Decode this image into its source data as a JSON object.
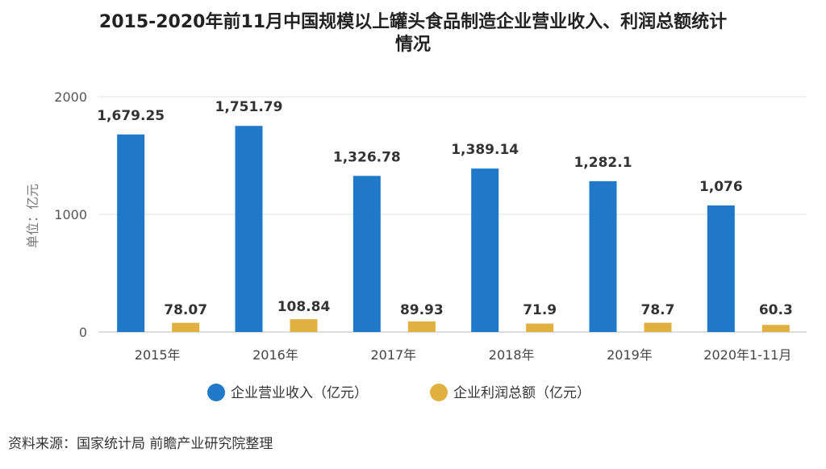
{
  "chart_data": {
    "type": "bar",
    "title_line1": "2015-2020年前11月中国规模以上罐头食品制造企业营业收入、利润总额统计",
    "title_line2": "情况",
    "ylabel": "单位：亿元",
    "ylim": [
      0,
      2000
    ],
    "yticks": [
      "0",
      "1000",
      "2000"
    ],
    "categories": [
      "2015年",
      "2016年",
      "2017年",
      "2018年",
      "2019年",
      "2020年1-11月"
    ],
    "series": [
      {
        "name": "企业营业收入（亿元）",
        "color": "#1f78c8",
        "values": [
          1679.25,
          1751.79,
          1326.78,
          1389.14,
          1282.1,
          1076
        ],
        "labels": [
          "1,679.25",
          "1,751.79",
          "1,326.78",
          "1,389.14",
          "1,282.1",
          "1,076"
        ]
      },
      {
        "name": "企业利润总额（亿元）",
        "color": "#e0b040",
        "values": [
          78.07,
          108.84,
          89.93,
          71.9,
          78.7,
          60.3
        ],
        "labels": [
          "78.07",
          "108.84",
          "89.93",
          "71.9",
          "78.7",
          "60.3"
        ]
      }
    ],
    "grid": true,
    "legend_position": "bottom"
  },
  "source": "资料来源：国家统计局 前瞻产业研究院整理"
}
